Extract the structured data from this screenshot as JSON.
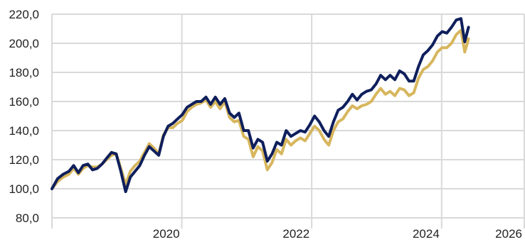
{
  "chart_data": {
    "type": "line",
    "title": "",
    "xlabel": "",
    "ylabel": "",
    "ylim": [
      80,
      220
    ],
    "xlim": [
      0,
      100
    ],
    "y_ticks": [
      80,
      100,
      120,
      140,
      160,
      180,
      200,
      220
    ],
    "y_tick_labels": [
      "80,0",
      "100,0",
      "120,0",
      "140,0",
      "160,0",
      "180,0",
      "200,0",
      "220,0"
    ],
    "x_ticks": [
      {
        "x": 0,
        "label": ""
      },
      {
        "x": 27.5,
        "label": "2020"
      },
      {
        "x": 55,
        "label": "2022"
      },
      {
        "x": 82.5,
        "label": "2024"
      },
      {
        "x": 100,
        "label": "2026"
      }
    ],
    "grid": true,
    "legend": "none",
    "colors": {
      "series1": "#0f1f5c",
      "series2": "#d7b65d",
      "grid": "#d9d9d9"
    },
    "series": [
      {
        "values": [
          [
            0,
            100
          ],
          [
            1.2,
            107
          ],
          [
            2.4,
            110
          ],
          [
            3.6,
            112
          ],
          [
            4.6,
            116
          ],
          [
            5.6,
            111
          ],
          [
            6.6,
            116
          ],
          [
            7.6,
            117
          ],
          [
            8.6,
            113
          ],
          [
            9.6,
            114
          ],
          [
            10.6,
            117
          ],
          [
            11.6,
            121
          ],
          [
            12.6,
            125
          ],
          [
            13.6,
            124
          ],
          [
            14.6,
            112
          ],
          [
            15.6,
            98
          ],
          [
            16.6,
            108
          ],
          [
            17.6,
            112
          ],
          [
            18.6,
            116
          ],
          [
            19.6,
            123
          ],
          [
            20.6,
            129
          ],
          [
            21.6,
            126
          ],
          [
            22.6,
            123
          ],
          [
            23.6,
            136
          ],
          [
            24.6,
            143
          ],
          [
            25.6,
            145
          ],
          [
            26.6,
            148
          ],
          [
            27.6,
            151
          ],
          [
            28.6,
            156
          ],
          [
            29.6,
            158
          ],
          [
            30.6,
            160
          ],
          [
            31.6,
            160
          ],
          [
            32.6,
            163
          ],
          [
            33.6,
            158
          ],
          [
            34.6,
            163
          ],
          [
            35.6,
            158
          ],
          [
            36.6,
            162
          ],
          [
            37.6,
            152
          ],
          [
            38.6,
            149
          ],
          [
            39.6,
            152
          ],
          [
            40.6,
            140
          ],
          [
            41.6,
            140
          ],
          [
            42.6,
            128
          ],
          [
            43.6,
            134
          ],
          [
            44.6,
            132
          ],
          [
            45.6,
            119
          ],
          [
            46.6,
            124
          ],
          [
            47.6,
            132
          ],
          [
            48.6,
            130
          ],
          [
            49.6,
            140
          ],
          [
            50.6,
            136
          ],
          [
            51.6,
            138
          ],
          [
            52.6,
            140
          ],
          [
            53.6,
            139
          ],
          [
            54.6,
            144
          ],
          [
            55.6,
            150
          ],
          [
            56.6,
            146
          ],
          [
            57.6,
            140
          ],
          [
            58.6,
            136
          ],
          [
            59.6,
            146
          ],
          [
            60.6,
            154
          ],
          [
            61.6,
            156
          ],
          [
            62.6,
            160
          ],
          [
            63.6,
            165
          ],
          [
            64.6,
            161
          ],
          [
            65.6,
            165
          ],
          [
            66.6,
            167
          ],
          [
            67.6,
            168
          ],
          [
            68.6,
            172
          ],
          [
            69.6,
            178
          ],
          [
            70.6,
            175
          ],
          [
            71.6,
            178
          ],
          [
            72.6,
            175
          ],
          [
            73.6,
            181
          ],
          [
            74.6,
            179
          ],
          [
            75.6,
            174
          ],
          [
            76.6,
            174
          ],
          [
            77.6,
            184
          ],
          [
            78.6,
            192
          ],
          [
            79.6,
            195
          ],
          [
            80.6,
            199
          ],
          [
            81.6,
            205
          ],
          [
            82.6,
            208
          ],
          [
            83.6,
            207
          ],
          [
            84.6,
            211
          ],
          [
            85.6,
            216
          ],
          [
            86.6,
            217
          ],
          [
            87.4,
            201
          ],
          [
            88.2,
            211
          ]
        ]
      },
      {
        "values": [
          [
            0,
            100
          ],
          [
            1.2,
            105
          ],
          [
            2.4,
            108
          ],
          [
            3.6,
            110
          ],
          [
            4.6,
            114
          ],
          [
            5.6,
            110
          ],
          [
            6.6,
            114
          ],
          [
            7.6,
            116
          ],
          [
            8.6,
            115
          ],
          [
            9.6,
            115
          ],
          [
            10.6,
            117
          ],
          [
            11.6,
            120
          ],
          [
            12.6,
            123
          ],
          [
            13.6,
            124
          ],
          [
            14.6,
            114
          ],
          [
            15.6,
            103
          ],
          [
            16.6,
            112
          ],
          [
            17.6,
            116
          ],
          [
            18.6,
            119
          ],
          [
            19.6,
            125
          ],
          [
            20.6,
            131
          ],
          [
            21.6,
            128
          ],
          [
            22.6,
            124
          ],
          [
            23.6,
            137
          ],
          [
            24.6,
            142
          ],
          [
            25.6,
            142
          ],
          [
            26.6,
            145
          ],
          [
            27.6,
            147
          ],
          [
            28.6,
            153
          ],
          [
            29.6,
            156
          ],
          [
            30.6,
            158
          ],
          [
            31.6,
            159
          ],
          [
            32.6,
            161
          ],
          [
            33.6,
            156
          ],
          [
            34.6,
            160
          ],
          [
            35.6,
            155
          ],
          [
            36.6,
            160
          ],
          [
            37.6,
            149
          ],
          [
            38.6,
            146
          ],
          [
            39.6,
            147
          ],
          [
            40.6,
            136
          ],
          [
            41.6,
            134
          ],
          [
            42.6,
            122
          ],
          [
            43.6,
            129
          ],
          [
            44.6,
            126
          ],
          [
            45.6,
            113
          ],
          [
            46.6,
            118
          ],
          [
            47.6,
            127
          ],
          [
            48.6,
            124
          ],
          [
            49.6,
            134
          ],
          [
            50.6,
            130
          ],
          [
            51.6,
            133
          ],
          [
            52.6,
            135
          ],
          [
            53.6,
            133
          ],
          [
            54.6,
            138
          ],
          [
            55.6,
            143
          ],
          [
            56.6,
            140
          ],
          [
            57.6,
            134
          ],
          [
            58.6,
            130
          ],
          [
            59.6,
            140
          ],
          [
            60.6,
            146
          ],
          [
            61.6,
            148
          ],
          [
            62.6,
            153
          ],
          [
            63.6,
            157
          ],
          [
            64.6,
            155
          ],
          [
            65.6,
            157
          ],
          [
            66.6,
            158
          ],
          [
            67.6,
            160
          ],
          [
            68.6,
            165
          ],
          [
            69.6,
            169
          ],
          [
            70.6,
            165
          ],
          [
            71.6,
            167
          ],
          [
            72.6,
            164
          ],
          [
            73.6,
            169
          ],
          [
            74.6,
            168
          ],
          [
            75.6,
            164
          ],
          [
            76.6,
            166
          ],
          [
            77.6,
            176
          ],
          [
            78.6,
            182
          ],
          [
            79.6,
            184
          ],
          [
            80.6,
            188
          ],
          [
            81.6,
            194
          ],
          [
            82.6,
            197
          ],
          [
            83.6,
            197
          ],
          [
            84.6,
            200
          ],
          [
            85.6,
            206
          ],
          [
            86.6,
            209
          ],
          [
            87.4,
            194
          ],
          [
            88.2,
            203
          ]
        ]
      }
    ]
  }
}
